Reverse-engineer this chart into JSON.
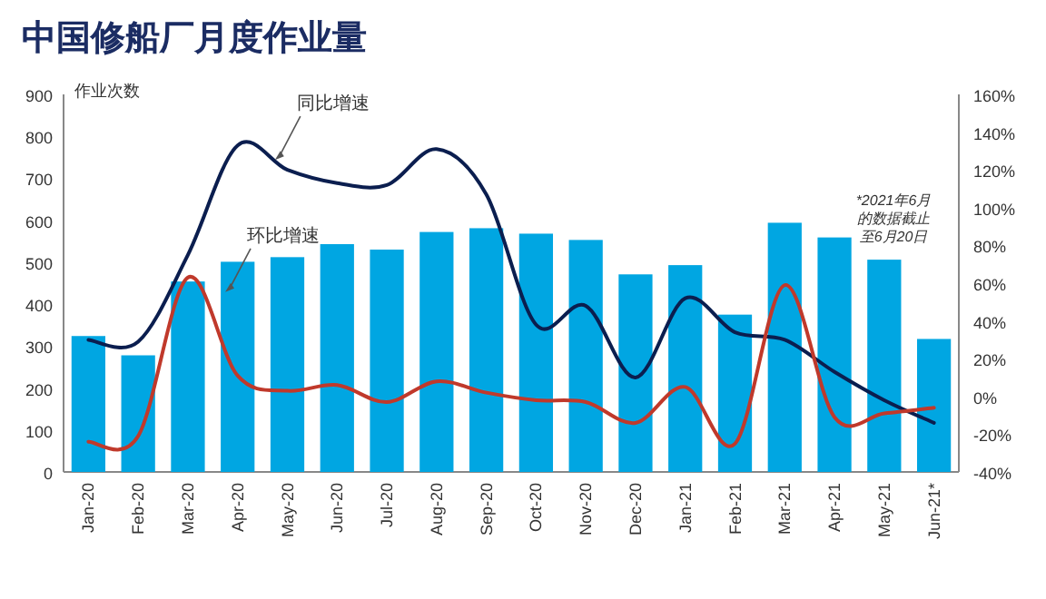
{
  "chart_data": {
    "type": "bar",
    "title": "中国修船厂月度作业量",
    "ylabel": "作业次数",
    "categories": [
      "Jan-20",
      "Feb-20",
      "Mar-20",
      "Apr-20",
      "May-20",
      "Jun-20",
      "Jul-20",
      "Aug-20",
      "Sep-20",
      "Oct-20",
      "Nov-20",
      "Dec-20",
      "Jan-21",
      "Feb-21",
      "Mar-21",
      "Apr-21",
      "May-21",
      "Jun-21*"
    ],
    "series": [
      {
        "color": "#00a6e2",
        "values": [
          324,
          278,
          454,
          501,
          512,
          543,
          530,
          572,
          581,
          568,
          553,
          471,
          493,
          375,
          594,
          559,
          506,
          317
        ]
      },
      {
        "name": "同比增速",
        "type": "line",
        "axis": "y2",
        "color": "#0b1e4f",
        "values": [
          30,
          29,
          75,
          133,
          120,
          113,
          112,
          131,
          107,
          38,
          48,
          10,
          52,
          34,
          30,
          13,
          -2,
          -14
        ]
      },
      {
        "name": "环比增速",
        "type": "line",
        "axis": "y2",
        "color": "#c0392b",
        "values": [
          -24,
          -21,
          63,
          11,
          3,
          6,
          -3,
          8,
          2,
          -2,
          -3,
          -14,
          5,
          -25,
          59,
          -11,
          -9,
          -6
        ]
      }
    ],
    "ylim": [
      0,
      900
    ],
    "yticks": [
      0,
      100,
      200,
      300,
      400,
      500,
      600,
      700,
      800,
      900
    ],
    "y2lim": [
      -40,
      160
    ],
    "y2ticks": [
      {
        "value": -40,
        "label": "-40%"
      },
      {
        "value": -20,
        "label": "-20%"
      },
      {
        "value": 0,
        "label": "0%"
      },
      {
        "value": 20,
        "label": "20%"
      },
      {
        "value": 40,
        "label": "40%"
      },
      {
        "value": 60,
        "label": "60%"
      },
      {
        "value": 80,
        "label": "80%"
      },
      {
        "value": 100,
        "label": "100%"
      },
      {
        "value": 120,
        "label": "120%"
      },
      {
        "value": 140,
        "label": "140%"
      },
      {
        "value": 160,
        "label": "160%"
      }
    ],
    "annotations": [
      "*2021年6月的数据截止至6月20日"
    ],
    "grid": false,
    "legend": false,
    "marker": "none",
    "line_style": "solid"
  }
}
